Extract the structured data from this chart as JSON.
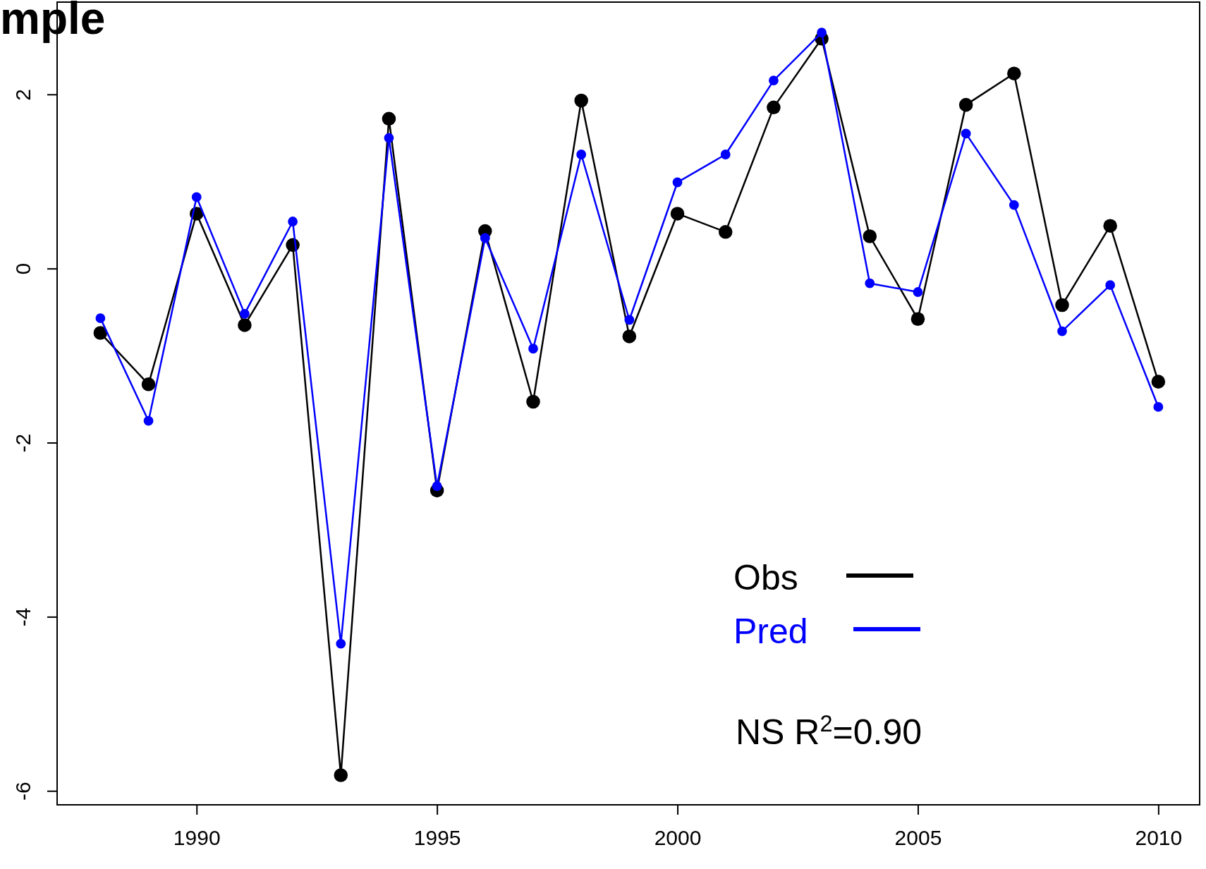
{
  "chart_data": {
    "type": "line",
    "title": "mple",
    "x": [
      1988,
      1989,
      1990,
      1991,
      1992,
      1993,
      1994,
      1995,
      1996,
      1997,
      1998,
      1999,
      2000,
      2001,
      2002,
      2003,
      2004,
      2005,
      2006,
      2007,
      2008,
      2009,
      2010
    ],
    "series": [
      {
        "name": "Obs",
        "color": "#000000",
        "values": [
          -0.74,
          -1.33,
          0.63,
          -0.65,
          0.27,
          -5.82,
          1.72,
          -2.55,
          0.43,
          -1.53,
          1.93,
          -0.78,
          0.63,
          0.42,
          1.85,
          2.64,
          0.37,
          -0.58,
          1.88,
          2.24,
          -0.42,
          0.49,
          -1.3
        ]
      },
      {
        "name": "Pred",
        "color": "#0000ff",
        "values": [
          -0.57,
          -1.75,
          0.82,
          -0.52,
          0.54,
          -4.31,
          1.5,
          -2.5,
          0.35,
          -0.92,
          1.31,
          -0.59,
          0.99,
          1.31,
          2.16,
          2.71,
          -0.17,
          -0.27,
          1.55,
          0.73,
          -0.72,
          -0.19,
          -1.59
        ]
      }
    ],
    "xlim": [
      1987.1,
      2010.86
    ],
    "xticks": [
      1990,
      1995,
      2000,
      2005,
      2010
    ],
    "ylim": [
      -6.16,
      3.06
    ],
    "yticks": [
      -6,
      -4,
      -2,
      0,
      2
    ],
    "marker": "circle",
    "line_style": "solid",
    "grid": false,
    "legend": "bottom right",
    "annotations": [
      "NS R$^{2}$=0.90"
    ]
  }
}
